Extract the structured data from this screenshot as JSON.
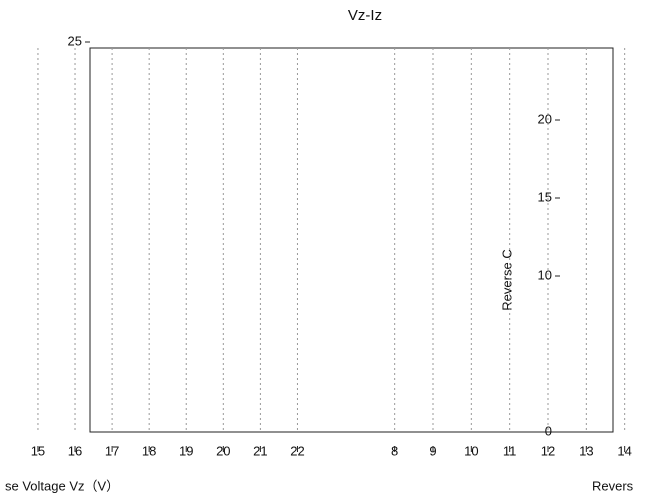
{
  "chart_data": [
    {
      "type": "line",
      "title": "Vz-Iz",
      "x_label": "se Voltage Vz（V）",
      "xlim": [
        14.3,
        22.5
      ],
      "xticks": [
        15,
        16,
        17,
        18,
        19,
        20,
        21,
        22
      ],
      "ylim": [
        0,
        25
      ],
      "yticks": [
        25
      ],
      "grid": true
    },
    {
      "type": "line",
      "x_label": "Revers",
      "y_label": "Reverse C",
      "xlim": [
        7.2,
        14.4
      ],
      "xticks": [
        8,
        9,
        10,
        11,
        12,
        13,
        14
      ],
      "ylim": [
        0,
        25
      ],
      "yticks": [
        0,
        10,
        15,
        20
      ],
      "grid": true
    }
  ]
}
